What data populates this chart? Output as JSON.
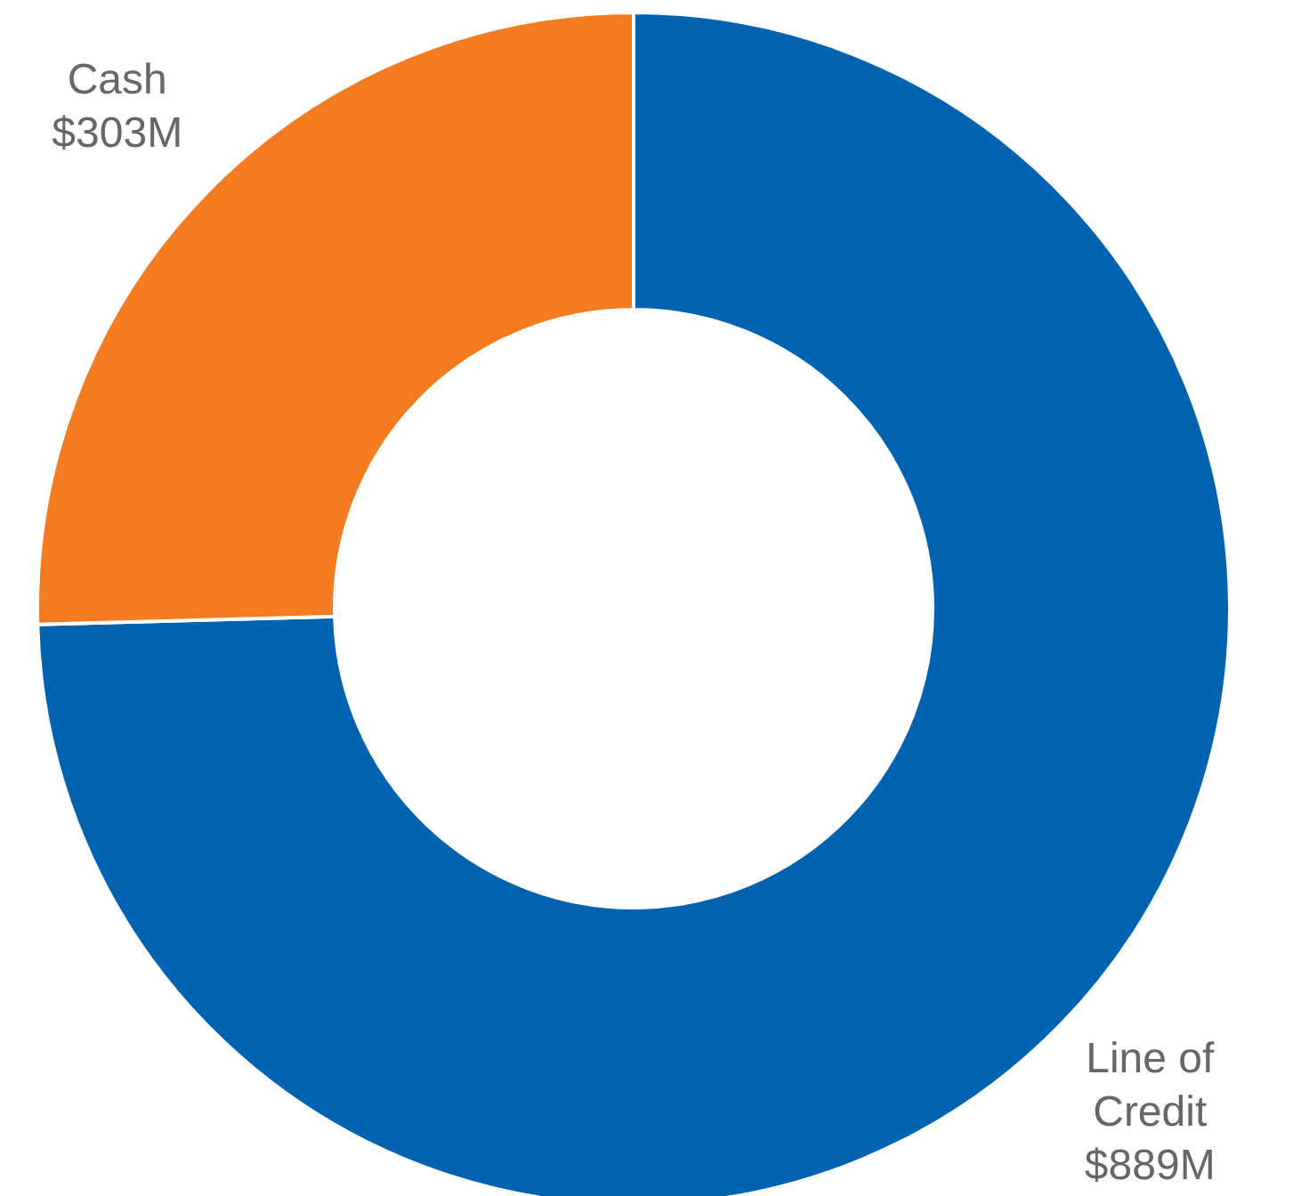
{
  "chart_data": {
    "type": "donut",
    "categories": [
      "Line of Credit",
      "Cash"
    ],
    "values": [
      889,
      303
    ],
    "value_labels": [
      "$889M",
      "$303M"
    ],
    "colors": [
      "#0063b1",
      "#f47b20"
    ]
  }
}
